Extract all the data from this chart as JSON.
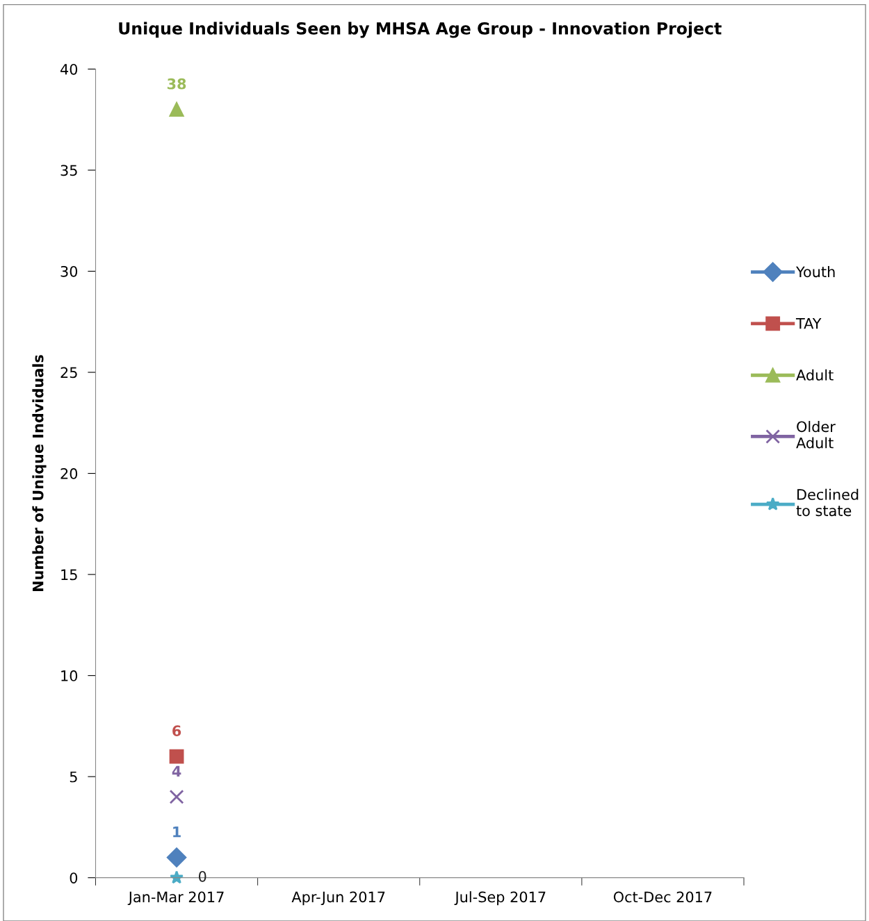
{
  "chart_data": {
    "type": "line",
    "title": "Unique Individuals Seen by MHSA Age Group - Innovation Project",
    "ylabel": "Number of Unique Indviduals",
    "categories": [
      "Jan-Mar 2017",
      "Apr-Jun 2017",
      "Jul-Sep 2017",
      "Oct-Dec 2017"
    ],
    "series": [
      {
        "name": "Youth",
        "color": "#4f81bd",
        "marker": "diamond",
        "values": [
          1,
          null,
          null,
          null
        ]
      },
      {
        "name": "TAY",
        "color": "#c0504d",
        "marker": "square",
        "values": [
          6,
          null,
          null,
          null
        ]
      },
      {
        "name": "Adult",
        "color": "#9bbb59",
        "marker": "triangle",
        "values": [
          38,
          null,
          null,
          null
        ]
      },
      {
        "name": "Older\nAdult",
        "color": "#8064a2",
        "marker": "cross",
        "values": [
          4,
          null,
          null,
          null
        ]
      },
      {
        "name": "Declined\nto state",
        "color": "#4bacc6",
        "marker": "star",
        "values": [
          0,
          null,
          null,
          null
        ]
      }
    ],
    "ylim": [
      0,
      40
    ],
    "yticks": [
      0,
      5,
      10,
      15,
      20,
      25,
      30,
      35,
      40
    ],
    "data_labels": true,
    "legend": "right",
    "grid": false
  }
}
